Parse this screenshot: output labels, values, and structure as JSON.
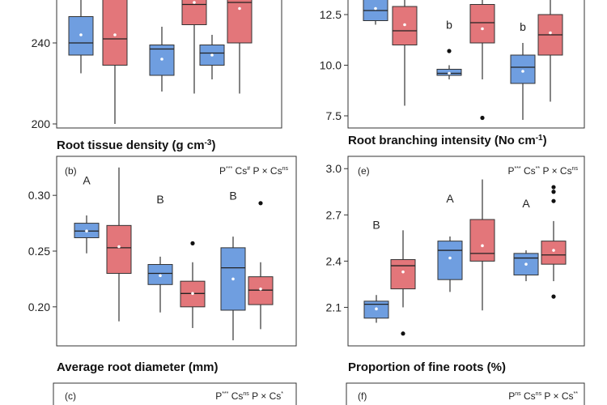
{
  "colors": {
    "g1": "#6f9ee0",
    "g2": "#e3767a",
    "g1_edge": "#4a6fa8",
    "g2_edge": "#b5484d"
  },
  "chart_data": [
    {
      "id": "a",
      "type": "box",
      "label": "",
      "xlabel": "Root tissue density (g cm⁻³)",
      "sig": "",
      "ylim": [
        198,
        262
      ],
      "yticks": [
        200,
        240
      ],
      "boxes": [
        {
          "g": 1,
          "lw": 225,
          "q1": 234,
          "med": 240,
          "q3": 253,
          "uw": 262,
          "mean": 244,
          "out": []
        },
        {
          "g": 2,
          "lw": 200,
          "q1": 229,
          "med": 242,
          "q3": 263,
          "uw": 263,
          "mean": 244,
          "out": []
        },
        {
          "g": 1,
          "lw": 216,
          "q1": 224,
          "med": 237,
          "q3": 239,
          "uw": 248,
          "mean": 232,
          "out": []
        },
        {
          "g": 2,
          "lw": 215,
          "q1": 249,
          "med": 259,
          "q3": 263,
          "uw": 263,
          "mean": 260,
          "out": []
        },
        {
          "g": 1,
          "lw": 222,
          "q1": 229,
          "med": 235,
          "q3": 239,
          "uw": 244,
          "mean": 234,
          "out": []
        },
        {
          "g": 2,
          "lw": 215,
          "q1": 240,
          "med": 260,
          "q3": 263,
          "uw": 263,
          "mean": 257,
          "out": []
        }
      ],
      "letters": []
    },
    {
      "id": "d",
      "type": "box",
      "label": "",
      "xlabel": "Root branching intensity (No cm⁻¹)",
      "sig": "",
      "ylim": [
        6.9,
        13.3
      ],
      "yticks": [
        7.5,
        10.0,
        12.5
      ],
      "boxes": [
        {
          "g": 1,
          "lw": 12.0,
          "q1": 12.2,
          "med": 12.7,
          "q3": 13.3,
          "uw": 13.3,
          "mean": 12.8,
          "out": []
        },
        {
          "g": 2,
          "lw": 8.0,
          "q1": 11.0,
          "med": 11.7,
          "q3": 12.9,
          "uw": 13.3,
          "mean": 12.0,
          "out": []
        },
        {
          "g": 1,
          "lw": 9.3,
          "q1": 9.5,
          "med": 9.6,
          "q3": 9.8,
          "uw": 10.0,
          "mean": 9.6,
          "out": [
            10.7
          ]
        },
        {
          "g": 2,
          "lw": 9.3,
          "q1": 11.1,
          "med": 12.1,
          "q3": 13.0,
          "uw": 13.3,
          "mean": 11.8,
          "out": [
            7.4
          ]
        },
        {
          "g": 1,
          "lw": 7.3,
          "q1": 9.1,
          "med": 9.9,
          "q3": 10.5,
          "uw": 11.1,
          "mean": 9.7,
          "out": []
        },
        {
          "g": 2,
          "lw": 8.2,
          "q1": 10.5,
          "med": 11.5,
          "q3": 12.5,
          "uw": 13.3,
          "mean": 11.6,
          "out": []
        }
      ],
      "letters": [
        {
          "box": 2,
          "text": "b",
          "y": 11.8
        },
        {
          "box": 4,
          "text": "b",
          "y": 11.7
        }
      ]
    },
    {
      "id": "b",
      "type": "box",
      "label": "(b)",
      "xlabel": "Average root diameter (mm)",
      "sig": "P*** Cs# P × Csns",
      "ylim": [
        0.165,
        0.335
      ],
      "yticks": [
        0.2,
        0.25,
        0.3
      ],
      "boxes": [
        {
          "g": 1,
          "lw": 0.248,
          "q1": 0.262,
          "med": 0.268,
          "q3": 0.275,
          "uw": 0.282,
          "mean": 0.268,
          "out": []
        },
        {
          "g": 2,
          "lw": 0.187,
          "q1": 0.23,
          "med": 0.253,
          "q3": 0.273,
          "uw": 0.325,
          "mean": 0.254,
          "out": []
        },
        {
          "g": 1,
          "lw": 0.195,
          "q1": 0.22,
          "med": 0.23,
          "q3": 0.238,
          "uw": 0.245,
          "mean": 0.228,
          "out": []
        },
        {
          "g": 2,
          "lw": 0.181,
          "q1": 0.2,
          "med": 0.212,
          "q3": 0.223,
          "uw": 0.24,
          "mean": 0.212,
          "out": [
            0.257
          ]
        },
        {
          "g": 1,
          "lw": 0.17,
          "q1": 0.197,
          "med": 0.235,
          "q3": 0.253,
          "uw": 0.263,
          "mean": 0.225,
          "out": []
        },
        {
          "g": 2,
          "lw": 0.18,
          "q1": 0.202,
          "med": 0.215,
          "q3": 0.227,
          "uw": 0.24,
          "mean": 0.216,
          "out": [
            0.293
          ]
        }
      ],
      "letters": [
        {
          "box": 0,
          "text": "A",
          "y": 0.31
        },
        {
          "box": 2,
          "text": "B",
          "y": 0.293
        },
        {
          "box": 4,
          "text": "B",
          "y": 0.296
        }
      ]
    },
    {
      "id": "e",
      "type": "box",
      "label": "(e)",
      "xlabel": "Proportion of fine roots (%)",
      "sig": "P*** Cs** P × Csns",
      "ylim": [
        1.85,
        3.08
      ],
      "yticks": [
        2.1,
        2.4,
        2.7,
        3.0
      ],
      "boxes": [
        {
          "g": 1,
          "lw": 2.0,
          "q1": 2.03,
          "med": 2.12,
          "q3": 2.14,
          "uw": 2.18,
          "mean": 2.09,
          "out": []
        },
        {
          "g": 2,
          "lw": 2.1,
          "q1": 2.22,
          "med": 2.37,
          "q3": 2.41,
          "uw": 2.6,
          "mean": 2.33,
          "out": [
            1.93
          ]
        },
        {
          "g": 1,
          "lw": 2.2,
          "q1": 2.28,
          "med": 2.47,
          "q3": 2.53,
          "uw": 2.56,
          "mean": 2.42,
          "out": []
        },
        {
          "g": 2,
          "lw": 2.08,
          "q1": 2.4,
          "med": 2.45,
          "q3": 2.67,
          "uw": 2.93,
          "mean": 2.5,
          "out": []
        },
        {
          "g": 1,
          "lw": 2.27,
          "q1": 2.31,
          "med": 2.42,
          "q3": 2.45,
          "uw": 2.47,
          "mean": 2.38,
          "out": []
        },
        {
          "g": 2,
          "lw": 2.27,
          "q1": 2.38,
          "med": 2.44,
          "q3": 2.53,
          "uw": 2.66,
          "mean": 2.47,
          "out": [
            2.79,
            2.85,
            2.88,
            2.17
          ]
        }
      ],
      "letters": [
        {
          "box": 0,
          "text": "B",
          "y": 2.61
        },
        {
          "box": 2,
          "text": "A",
          "y": 2.78
        },
        {
          "box": 4,
          "text": "A",
          "y": 2.75
        }
      ]
    }
  ],
  "bottom_panels": [
    {
      "label": "(c)",
      "sig": "P*** Csns P × Cs*"
    },
    {
      "label": "(f)",
      "sig": "Pns Csns P × Cs**"
    }
  ]
}
